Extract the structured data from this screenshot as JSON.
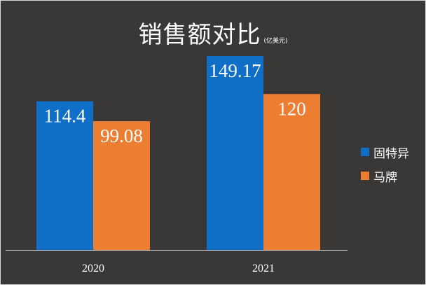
{
  "chart_data": {
    "type": "bar",
    "title": "销售额对比",
    "unit": "(亿美元)",
    "categories": [
      "2020",
      "2021"
    ],
    "series": [
      {
        "name": "固特异",
        "values": [
          114.4,
          149.17
        ],
        "labels": [
          "114.4",
          "149.17"
        ],
        "color": "#0f6fc6"
      },
      {
        "name": "马牌",
        "values": [
          99.08,
          120
        ],
        "labels": [
          "99.08",
          "120"
        ],
        "color": "#ed7d31"
      }
    ],
    "ylim": [
      0,
      160
    ],
    "grid": false,
    "legend_position": "right",
    "xlabel": "",
    "ylabel": ""
  }
}
